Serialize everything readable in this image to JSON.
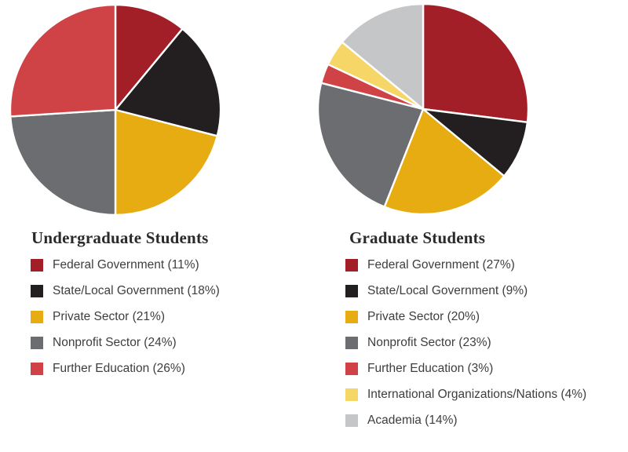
{
  "styles": {
    "separator_color": "#ffffff",
    "title_color": "#2B292A",
    "legend_text_color": "#3E3D3F"
  },
  "chart_data": [
    {
      "type": "pie",
      "title": "Undergraduate Students",
      "start_angle_deg": 0,
      "direction": "clockwise",
      "legend_position": "below",
      "slices": [
        {
          "label": "Federal Government",
          "value": 11,
          "color": "#A31F28",
          "display": "Federal Government (11%)"
        },
        {
          "label": "State/Local Government",
          "value": 18,
          "color": "#231F20",
          "display": "State/Local Government (18%)"
        },
        {
          "label": "Private Sector",
          "value": 21,
          "color": "#E6AC11",
          "display": "Private Sector (21%)"
        },
        {
          "label": "Nonprofit Sector",
          "value": 24,
          "color": "#6C6D70",
          "display": "Nonprofit Sector (24%)"
        },
        {
          "label": "Further Education",
          "value": 26,
          "color": "#CF4245",
          "display": "Further Education (26%)"
        }
      ]
    },
    {
      "type": "pie",
      "title": "Graduate Students",
      "start_angle_deg": 0,
      "direction": "clockwise",
      "legend_position": "below",
      "slices": [
        {
          "label": "Federal Government",
          "value": 27,
          "color": "#A31F28",
          "display": "Federal Government (27%)"
        },
        {
          "label": "State/Local Government",
          "value": 9,
          "color": "#231F20",
          "display": "State/Local Government (9%)"
        },
        {
          "label": "Private Sector",
          "value": 20,
          "color": "#E6AC11",
          "display": "Private Sector (20%)"
        },
        {
          "label": "Nonprofit Sector",
          "value": 23,
          "color": "#6C6D70",
          "display": "Nonprofit Sector (23%)"
        },
        {
          "label": "Further Education",
          "value": 3,
          "color": "#CF4245",
          "display": "Further Education (3%)"
        },
        {
          "label": "International Organizations/Nations",
          "value": 4,
          "color": "#F5D666",
          "display": "International Organizations/Nations (4%)"
        },
        {
          "label": "Academia",
          "value": 14,
          "color": "#C5C6C8",
          "display": "Academia (14%)"
        }
      ]
    }
  ]
}
